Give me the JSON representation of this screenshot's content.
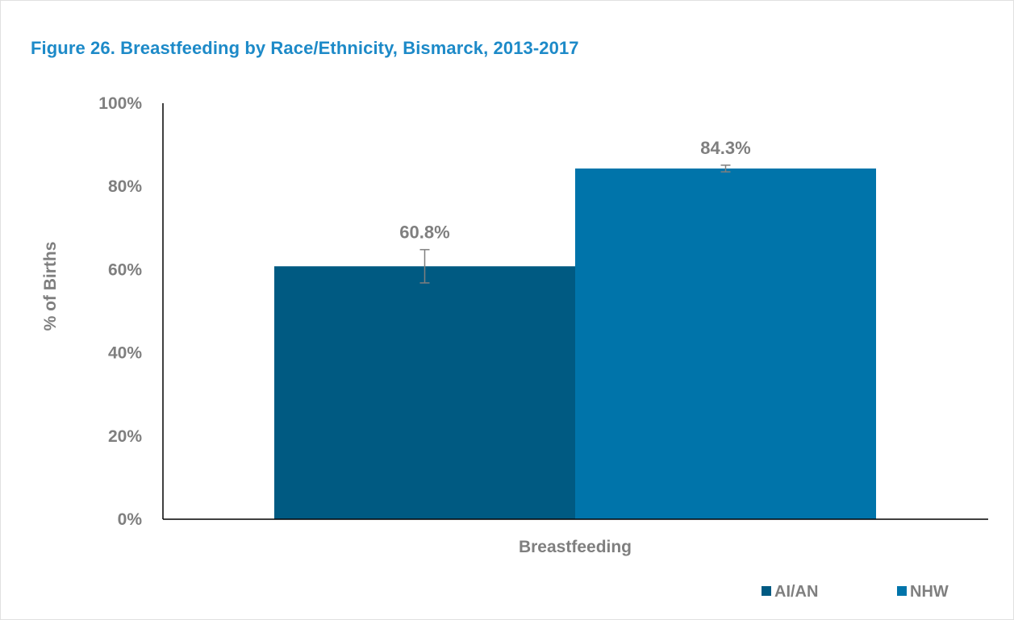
{
  "chart_data": {
    "type": "bar",
    "title": "Figure 26. Breastfeeding by Race/Ethnicity, Bismarck, 2013-2017",
    "xlabel": "",
    "ylabel": "% of Births",
    "categories": [
      "Breastfeeding"
    ],
    "ylim": [
      0,
      100
    ],
    "yticks": [
      0,
      20,
      40,
      60,
      80,
      100
    ],
    "ytick_labels": [
      "0%",
      "20%",
      "40%",
      "60%",
      "80%",
      "100%"
    ],
    "grid": false,
    "legend_position": "bottom-right",
    "series": [
      {
        "name": "AI/AN",
        "values": [
          60.8
        ],
        "data_labels": [
          "60.8%"
        ],
        "error": [
          [
            56.8,
            64.8
          ]
        ],
        "color": "#005a82"
      },
      {
        "name": "NHW",
        "values": [
          84.3
        ],
        "data_labels": [
          "84.3%"
        ],
        "error": [
          [
            83.5,
            85.1
          ]
        ],
        "color": "#0074aa"
      }
    ]
  },
  "colors": {
    "title": "#1d8ac8",
    "text": "#7f7f7f",
    "axis": "#000000",
    "error_bar": "#7f7f7f"
  }
}
